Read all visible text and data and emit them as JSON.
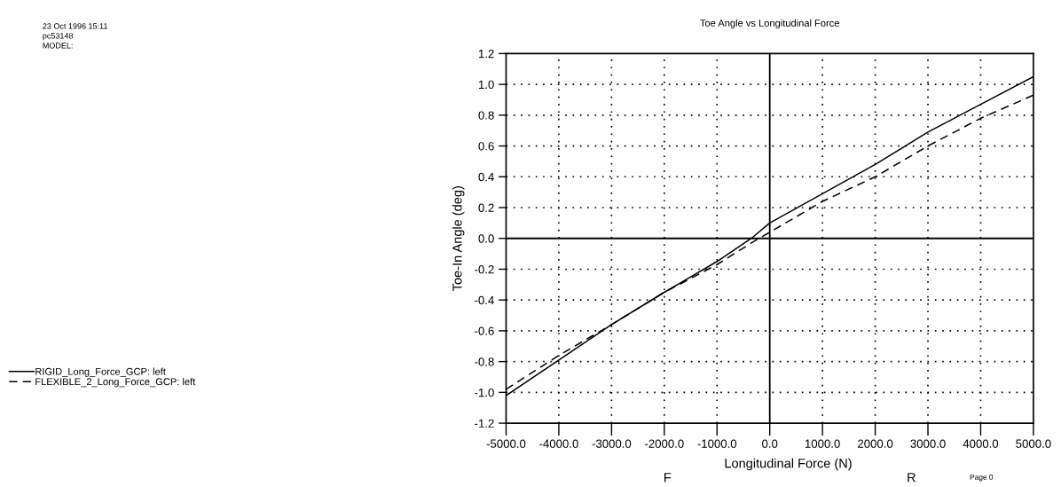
{
  "chart_data": {
    "type": "line",
    "title": "Toe Angle vs Longitudinal Force",
    "xlabel": "Longitudinal Force (N)",
    "ylabel": "Toe-In Angle (deg)",
    "x": [
      -5000,
      -4000,
      -3000,
      -2000,
      -1000,
      -350,
      0,
      1000,
      2000,
      3000,
      4000,
      5000
    ],
    "series": [
      {
        "name": "RIGID_Long_Force_GCP: left",
        "color": "#000000",
        "line_style": "solid",
        "values": [
          -1.02,
          -0.79,
          -0.56,
          -0.35,
          -0.15,
          0.0,
          0.1,
          0.29,
          0.48,
          0.69,
          0.87,
          1.05
        ]
      },
      {
        "name": "FLEXIBLE_2_Long_Force_GCP: left",
        "color": "#000000",
        "line_style": "dashed",
        "values": [
          -0.98,
          -0.76,
          -0.56,
          -0.35,
          -0.17,
          -0.03,
          0.04,
          0.24,
          0.4,
          0.6,
          0.78,
          0.93
        ]
      }
    ],
    "xlim": [
      -5000,
      5000
    ],
    "xticks": [
      {
        "value": -5000,
        "label": "-5000.0"
      },
      {
        "value": -4000,
        "label": "-4000.0"
      },
      {
        "value": -3000,
        "label": "-3000.0"
      },
      {
        "value": -2000,
        "label": "-2000.0"
      },
      {
        "value": -1000,
        "label": "-1000.0"
      },
      {
        "value": 0,
        "label": "0.0"
      },
      {
        "value": 1000,
        "label": "1000.0"
      },
      {
        "value": 2000,
        "label": "2000.0"
      },
      {
        "value": 3000,
        "label": "3000.0"
      },
      {
        "value": 4000,
        "label": "4000.0"
      },
      {
        "value": 5000,
        "label": "5000.0"
      }
    ],
    "ylim": [
      -1.2,
      1.2
    ],
    "yticks": [
      -1.2,
      {
        "value": -1,
        "label": "-1.0"
      },
      -0.8,
      -0.6,
      -0.4,
      -0.2,
      {
        "value": 0,
        "label": "0.0"
      },
      0.2,
      0.4,
      0.6,
      0.8,
      {
        "value": 1,
        "label": "1.0"
      },
      1.2
    ],
    "grid": true,
    "legend": "left",
    "marker": "none",
    "annotations": [
      "23 Oct 1996 15:11",
      "pc53148",
      "MODEL:",
      "F",
      "R",
      "Page 0"
    ]
  }
}
